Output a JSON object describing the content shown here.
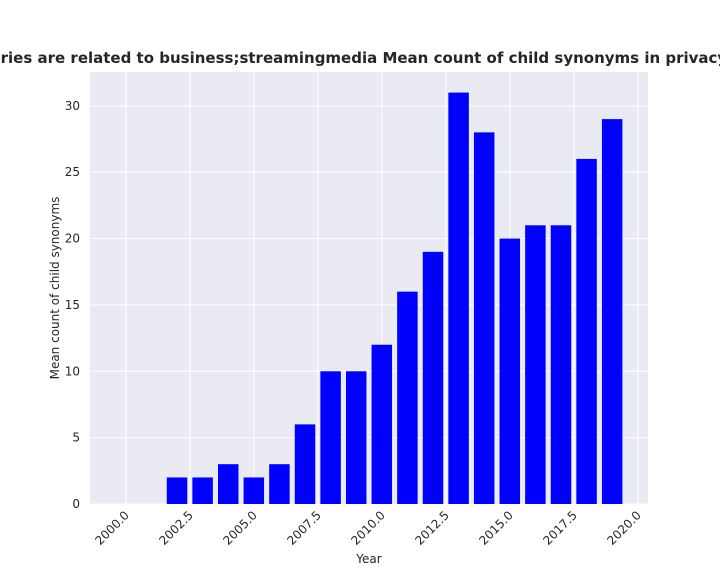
{
  "chart_data": {
    "type": "bar",
    "title": "Categories are related to business;streamingmedia Mean count of child synonyms in privacy policies",
    "xlabel": "Year",
    "ylabel": "Mean count of child synonyms",
    "x": [
      2002,
      2003,
      2004,
      2005,
      2006,
      2007,
      2008,
      2009,
      2010,
      2011,
      2012,
      2013,
      2014,
      2015,
      2016,
      2017,
      2018,
      2019
    ],
    "values": [
      2,
      2,
      3,
      2,
      3,
      6,
      10,
      10,
      12,
      16,
      19,
      31,
      28,
      20,
      21,
      21,
      26,
      29
    ],
    "xlim": [
      1998.6,
      2020.4
    ],
    "ylim": [
      0,
      32.55
    ],
    "xticks": [
      "2000.0",
      "2002.5",
      "2005.0",
      "2007.5",
      "2010.0",
      "2012.5",
      "2015.0",
      "2017.5",
      "2020.0"
    ],
    "xtick_values": [
      2000,
      2002.5,
      2005,
      2007.5,
      2010,
      2012.5,
      2015,
      2017.5,
      2020
    ],
    "yticks": [
      "0",
      "5",
      "10",
      "15",
      "20",
      "25",
      "30"
    ],
    "ytick_values": [
      0,
      5,
      10,
      15,
      20,
      25,
      30
    ],
    "bar_color": "#0000ff",
    "plot_background": "#eaeaf2",
    "grid": true
  }
}
